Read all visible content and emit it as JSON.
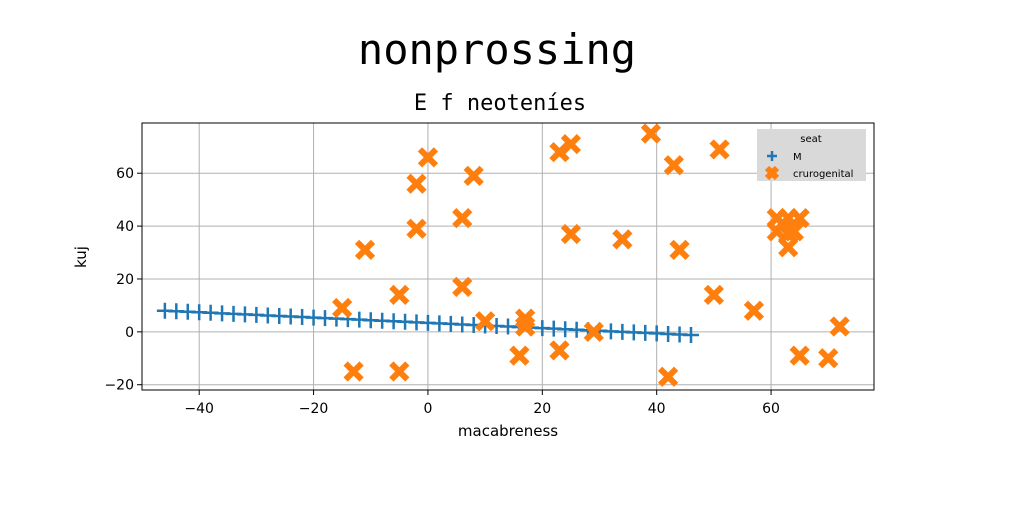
{
  "chart_data": {
    "type": "scatter",
    "suptitle": "nonprossing",
    "title": "E f neoteníes",
    "xlabel": "macabreness",
    "ylabel": "kuj",
    "xlim": [
      -50,
      78
    ],
    "ylim": [
      -22,
      79
    ],
    "xticks": [
      -40,
      -20,
      0,
      20,
      40,
      60
    ],
    "yticks": [
      -20,
      0,
      20,
      40,
      60
    ],
    "grid": true,
    "legend": {
      "title": "seat",
      "placement": "upper right"
    },
    "series": [
      {
        "name": "M",
        "marker": "plus",
        "color": "#1f77b4",
        "x": [
          -46,
          -44,
          -42,
          -40,
          -38,
          -36,
          -34,
          -32,
          -30,
          -28,
          -26,
          -24,
          -22,
          -20,
          -18,
          -16,
          -14,
          -12,
          -10,
          -8,
          -6,
          -4,
          -2,
          0,
          2,
          4,
          6,
          8,
          10,
          12,
          14,
          16,
          18,
          20,
          22,
          24,
          26,
          28,
          30,
          32,
          34,
          36,
          38,
          40,
          42,
          44,
          46
        ],
        "y": [
          8,
          7.8,
          7.6,
          7.4,
          7.2,
          7.0,
          6.8,
          6.6,
          6.4,
          6.2,
          6.0,
          5.8,
          5.6,
          5.4,
          5.2,
          5.0,
          4.8,
          4.6,
          4.4,
          4.2,
          4.0,
          3.8,
          3.6,
          3.4,
          3.2,
          3.0,
          2.8,
          2.6,
          2.4,
          2.2,
          2.0,
          1.8,
          1.6,
          1.4,
          1.2,
          1.0,
          0.8,
          0.6,
          0.4,
          0.2,
          0.0,
          -0.2,
          -0.4,
          -0.6,
          -0.8,
          -1.0,
          -1.2
        ]
      },
      {
        "name": "crurogenital",
        "marker": "x",
        "color": "#ff7f0e",
        "x": [
          -15,
          -13,
          -11,
          -5,
          -5,
          -2,
          -2,
          0,
          6,
          6,
          8,
          10,
          16,
          17,
          17,
          23,
          23,
          25,
          25,
          29,
          34,
          39,
          42,
          43,
          44,
          50,
          51,
          57,
          61,
          61,
          62,
          63,
          63,
          63,
          64,
          65,
          65,
          70,
          72
        ],
        "y": [
          9,
          -15,
          31,
          14,
          -15,
          56,
          39,
          66,
          43,
          17,
          59,
          4,
          -9,
          2,
          5,
          68,
          -7,
          71,
          37,
          0,
          35,
          75,
          -17,
          63,
          31,
          14,
          69,
          8,
          43,
          38,
          41,
          37,
          32,
          43,
          38,
          43,
          -9,
          -10,
          2
        ]
      }
    ]
  }
}
